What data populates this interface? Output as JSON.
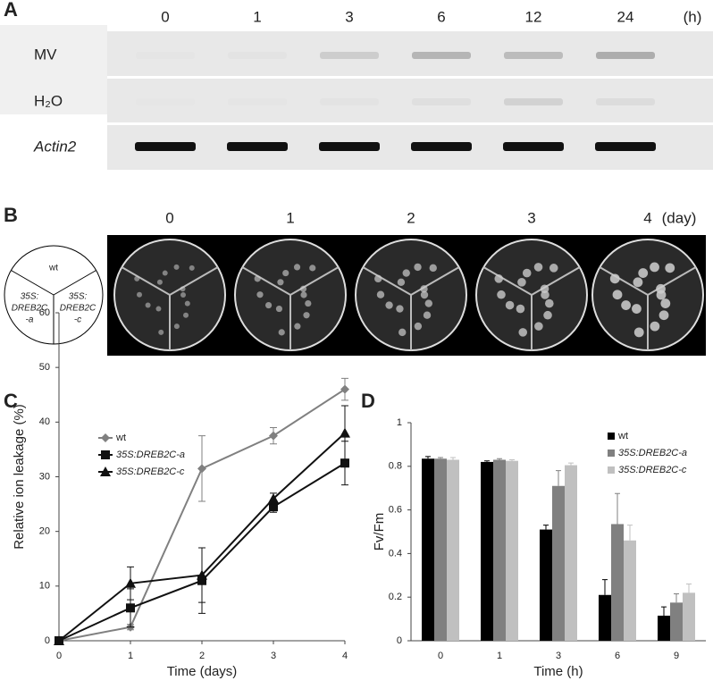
{
  "panel_a": {
    "label": "A",
    "columns": [
      "0",
      "1",
      "3",
      "6",
      "12",
      "24"
    ],
    "unit": "(h)",
    "rows": [
      "MV",
      "H₂O",
      "Actin2"
    ]
  },
  "panel_b": {
    "label": "B",
    "columns": [
      "0",
      "1",
      "2",
      "3",
      "4"
    ],
    "unit": "(day)",
    "diagram": {
      "top": "wt",
      "left": [
        "35S:",
        "DREB2C",
        "-a"
      ],
      "right": [
        "35S:",
        "DREB2C",
        "-c"
      ]
    }
  },
  "chart_data": [
    {
      "type": "line",
      "panel": "C",
      "xlabel": "Time (days)",
      "ylabel": "Relative ion leakage (%)",
      "x": [
        0,
        1,
        2,
        3,
        4
      ],
      "xlim": [
        0,
        4
      ],
      "xticks": [
        0,
        1,
        2,
        3,
        4
      ],
      "ylim": [
        0,
        60
      ],
      "yticks": [
        0,
        10,
        20,
        30,
        40,
        50,
        60
      ],
      "series": [
        {
          "name": "wt",
          "color": "#808080",
          "marker": "diamond",
          "italic": false,
          "values": [
            0,
            2.5,
            31.5,
            37.5,
            46
          ],
          "errors": [
            0,
            0.5,
            6,
            1.5,
            2
          ]
        },
        {
          "name": "35S:DREB2C-a",
          "color": "#111111",
          "marker": "square",
          "italic": true,
          "values": [
            0,
            6,
            11,
            24.5,
            32.5
          ],
          "errors": [
            0,
            3.5,
            6,
            1,
            4
          ]
        },
        {
          "name": "35S:DREB2C-c",
          "color": "#111111",
          "marker": "triangle",
          "italic": true,
          "values": [
            0,
            10.5,
            12,
            26,
            38
          ],
          "errors": [
            0,
            3,
            5,
            1,
            5
          ]
        }
      ]
    },
    {
      "type": "bar",
      "panel": "D",
      "xlabel": "Time (h)",
      "ylabel": "Fv/Fm",
      "categories": [
        "0",
        "1",
        "3",
        "6",
        "9"
      ],
      "ylim": [
        0,
        1
      ],
      "yticks": [
        0,
        0.2,
        0.4,
        0.6,
        0.8,
        1
      ],
      "series": [
        {
          "name": "wt",
          "color": "#000000",
          "italic": false,
          "values": [
            0.835,
            0.82,
            0.51,
            0.21,
            0.115
          ],
          "errors": [
            0.01,
            0.005,
            0.02,
            0.07,
            0.04
          ]
        },
        {
          "name": "35S:DREB2C-a",
          "color": "#808080",
          "italic": true,
          "values": [
            0.835,
            0.83,
            0.71,
            0.535,
            0.175
          ],
          "errors": [
            0.005,
            0.005,
            0.07,
            0.14,
            0.04
          ]
        },
        {
          "name": "35S:DREB2C-c",
          "color": "#c0c0c0",
          "italic": true,
          "values": [
            0.83,
            0.825,
            0.805,
            0.46,
            0.22
          ],
          "errors": [
            0.01,
            0.005,
            0.01,
            0.07,
            0.04
          ]
        }
      ]
    }
  ]
}
